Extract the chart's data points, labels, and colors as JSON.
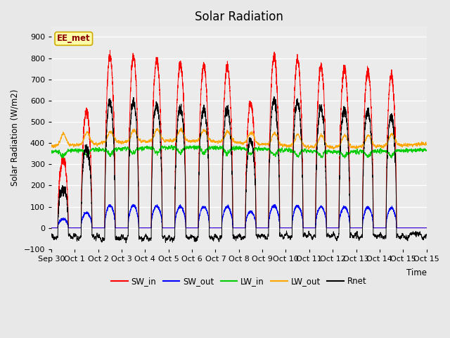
{
  "title": "Solar Radiation",
  "ylabel": "Solar Radiation (W/m2)",
  "xlabel": "Time",
  "ylim": [
    -100,
    950
  ],
  "yticks": [
    -100,
    0,
    100,
    200,
    300,
    400,
    500,
    600,
    700,
    800,
    900
  ],
  "annotation": "EE_met",
  "fig_bg_color": "#e8e8e8",
  "plot_bg_color": "#ebebeb",
  "legend_colors": [
    "#ff0000",
    "#0000ff",
    "#00cc00",
    "#ffa500",
    "#000000"
  ],
  "sw_peaks": [
    325,
    550,
    805,
    810,
    790,
    770,
    765,
    760,
    590,
    800,
    790,
    760,
    750,
    740,
    720
  ],
  "num_days": 16,
  "samples_per_day": 288
}
